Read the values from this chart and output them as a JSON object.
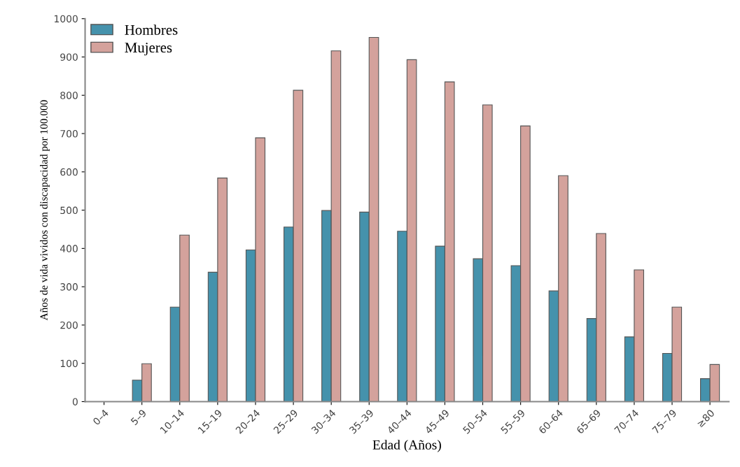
{
  "chart_data": {
    "type": "bar",
    "xlabel": "Edad (Años)",
    "ylabel": "Años de vida vividos con discapacidad por 100.000",
    "categories": [
      "0–4",
      "5–9",
      "10–14",
      "15–19",
      "20–24",
      "25–29",
      "30–34",
      "35–39",
      "40–44",
      "45–49",
      "50–54",
      "55–59",
      "60–64",
      "65–69",
      "70–74",
      "75–79",
      "≥80"
    ],
    "series": [
      {
        "name": "Hombres",
        "color": "#4592ac",
        "values": [
          null,
          56,
          247,
          338,
          396,
          456,
          499,
          495,
          445,
          406,
          373,
          355,
          289,
          217,
          169,
          126,
          60
        ]
      },
      {
        "name": "Mujeres",
        "color": "#d4a29c",
        "values": [
          null,
          99,
          435,
          584,
          689,
          813,
          916,
          951,
          893,
          835,
          775,
          720,
          590,
          439,
          344,
          247,
          97
        ]
      }
    ],
    "ylim": [
      0,
      1000
    ],
    "yticks": [
      0,
      100,
      200,
      300,
      400,
      500,
      600,
      700,
      800,
      900,
      1000
    ],
    "grid": false,
    "legend": "top left"
  }
}
